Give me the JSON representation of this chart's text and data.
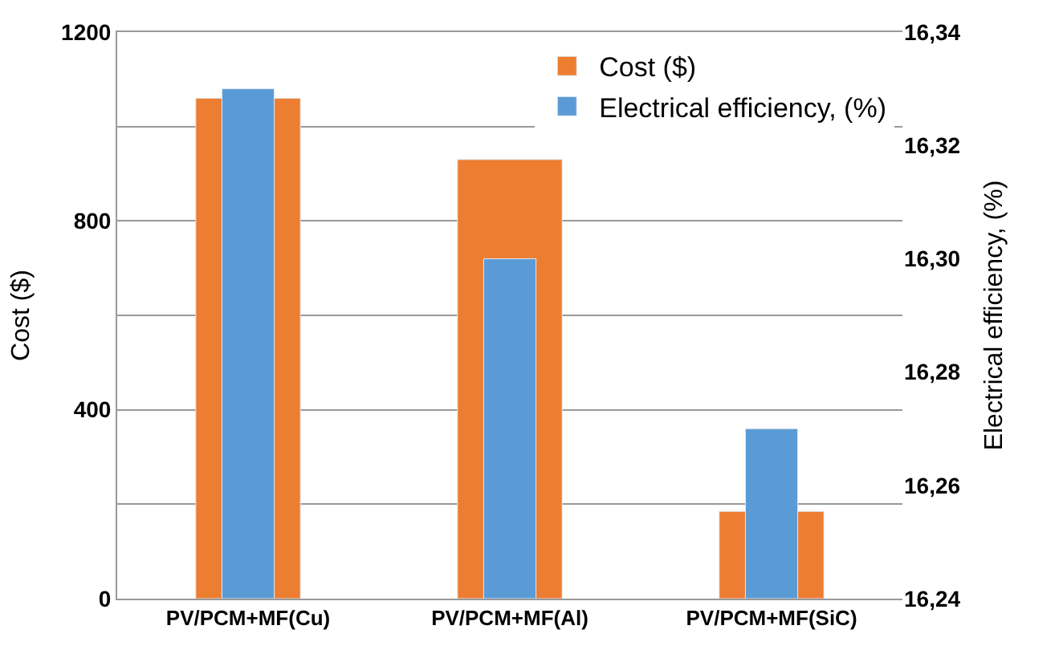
{
  "chart_data": {
    "type": "bar",
    "ylabel": "Cost ($)",
    "y2label": "Electrical efficiency, (%)",
    "categories": [
      "PV/PCM+MF(Cu)",
      "PV/PCM+MF(Al)",
      "PV/PCM+MF(SiC)"
    ],
    "series": [
      {
        "name": "Cost ($)",
        "color": "#ed7d31",
        "values": [
          1060,
          930,
          185
        ]
      },
      {
        "name": "Electrical efficiency, (%)",
        "color": "#5b9bd5",
        "values": [
          16.33,
          16.3,
          16.27
        ],
        "axis": "y2"
      }
    ],
    "ylim": [
      0,
      1200
    ],
    "yticks": [
      0,
      {
        "value": 200,
        "label": null
      },
      400,
      {
        "value": 600,
        "label": null
      },
      800,
      {
        "value": 1000,
        "label": null
      },
      1200
    ],
    "y2lim": [
      16.24,
      16.34
    ],
    "y2ticks": [
      {
        "value": 16.24,
        "label": "16,24"
      },
      {
        "value": 16.26,
        "label": "16,26"
      },
      {
        "value": 16.28,
        "label": "16,28"
      },
      {
        "value": 16.3,
        "label": "16,30"
      },
      {
        "value": 16.32,
        "label": "16,32"
      },
      {
        "value": 16.34,
        "label": "16,34"
      }
    ],
    "grid": "y",
    "legend": "top right"
  }
}
